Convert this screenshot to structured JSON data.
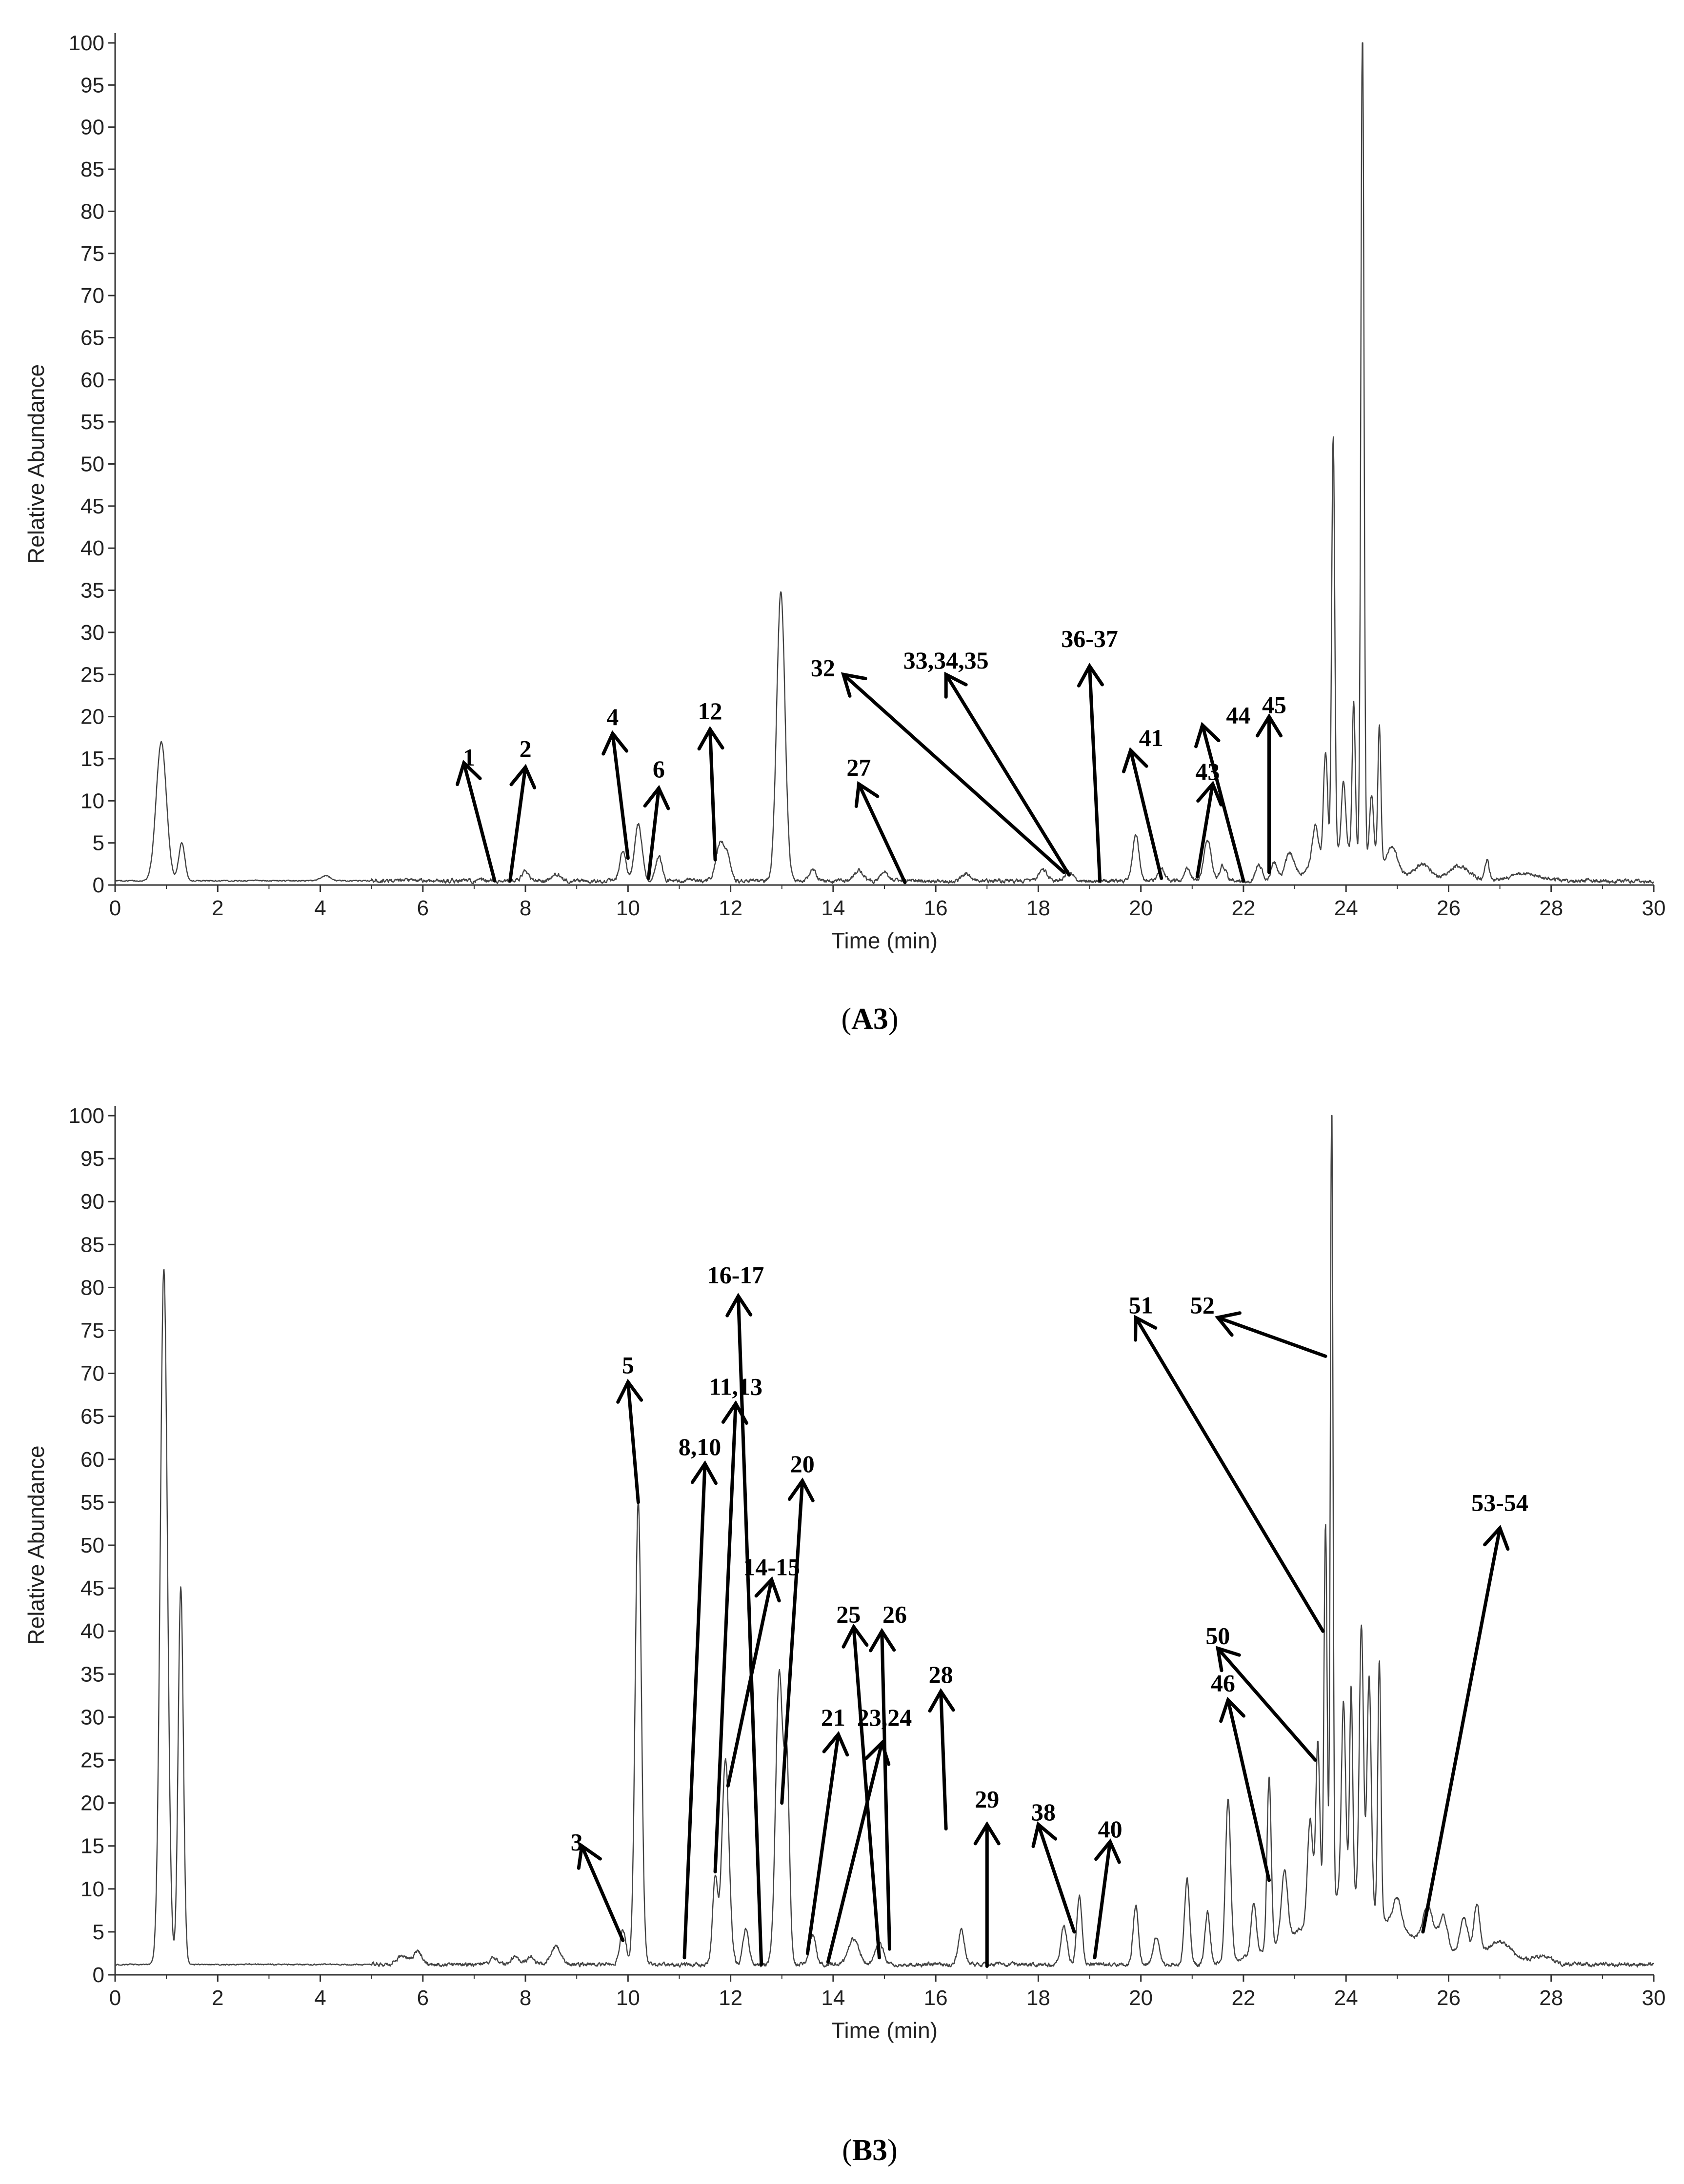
{
  "chart_data": [
    {
      "type": "line",
      "panel": "A3",
      "caption": {
        "open": "(",
        "bold": "A3",
        "close": ")"
      },
      "xlabel": "Time (min)",
      "ylabel": "Relative Abundance",
      "xlim": [
        0,
        30
      ],
      "ylim": [
        0,
        100
      ],
      "x_ticks": [
        0,
        2,
        4,
        6,
        8,
        10,
        12,
        14,
        16,
        18,
        20,
        22,
        24,
        26,
        28,
        30
      ],
      "x_tick_labels": [
        "0",
        "2",
        "4",
        "6",
        "8",
        "10",
        "12",
        "14",
        "16",
        "18",
        "20",
        "22",
        "24",
        "26",
        "28",
        "30"
      ],
      "y_ticks": [
        0,
        5,
        10,
        15,
        20,
        25,
        30,
        35,
        40,
        45,
        50,
        55,
        60,
        65,
        70,
        75,
        80,
        85,
        90,
        95,
        100
      ],
      "y_tick_labels": [
        "0",
        "5",
        "10",
        "15",
        "20",
        "25",
        "30",
        "35",
        "40",
        "45",
        "50",
        "55",
        "60",
        "65",
        "70",
        "75",
        "80",
        "85",
        "90",
        "95",
        "100"
      ],
      "baseline": 0.5,
      "peaks": [
        {
          "t": 0.9,
          "h": 16.5,
          "w": 0.1
        },
        {
          "t": 1.3,
          "h": 4.5,
          "w": 0.06
        },
        {
          "t": 4.1,
          "h": 0.6,
          "w": 0.1
        },
        {
          "t": 8.0,
          "h": 1.2,
          "w": 0.06
        },
        {
          "t": 8.6,
          "h": 0.8,
          "w": 0.08
        },
        {
          "t": 9.9,
          "h": 3.5,
          "w": 0.06
        },
        {
          "t": 10.2,
          "h": 6.8,
          "w": 0.07
        },
        {
          "t": 10.6,
          "h": 3.0,
          "w": 0.06
        },
        {
          "t": 11.8,
          "h": 4.5,
          "w": 0.08
        },
        {
          "t": 11.95,
          "h": 2.5,
          "w": 0.06
        },
        {
          "t": 12.98,
          "h": 34.5,
          "w": 0.08
        },
        {
          "t": 13.6,
          "h": 1.3,
          "w": 0.06
        },
        {
          "t": 14.5,
          "h": 1.2,
          "w": 0.08
        },
        {
          "t": 15.0,
          "h": 1.0,
          "w": 0.08
        },
        {
          "t": 16.6,
          "h": 0.9,
          "w": 0.08
        },
        {
          "t": 18.1,
          "h": 1.2,
          "w": 0.08
        },
        {
          "t": 18.6,
          "h": 1.0,
          "w": 0.08
        },
        {
          "t": 19.9,
          "h": 5.5,
          "w": 0.06
        },
        {
          "t": 20.4,
          "h": 1.5,
          "w": 0.06
        },
        {
          "t": 20.9,
          "h": 1.5,
          "w": 0.06
        },
        {
          "t": 21.3,
          "h": 4.8,
          "w": 0.07
        },
        {
          "t": 21.6,
          "h": 1.8,
          "w": 0.06
        },
        {
          "t": 22.3,
          "h": 2.0,
          "w": 0.06
        },
        {
          "t": 22.6,
          "h": 2.0,
          "w": 0.06
        },
        {
          "t": 22.9,
          "h": 2.8,
          "w": 0.08
        },
        {
          "t": 23.4,
          "h": 5.0,
          "w": 0.06
        },
        {
          "t": 23.6,
          "h": 13.0,
          "w": 0.04
        },
        {
          "t": 23.75,
          "h": 50.0,
          "w": 0.03
        },
        {
          "t": 23.95,
          "h": 8.0,
          "w": 0.04
        },
        {
          "t": 24.15,
          "h": 18.0,
          "w": 0.03
        },
        {
          "t": 24.32,
          "h": 99.5,
          "w": 0.03
        },
        {
          "t": 24.5,
          "h": 8.0,
          "w": 0.04
        },
        {
          "t": 24.65,
          "h": 16.5,
          "w": 0.03
        },
        {
          "t": 24.9,
          "h": 3.0,
          "w": 0.1
        },
        {
          "t": 25.5,
          "h": 1.8,
          "w": 0.15
        },
        {
          "t": 26.2,
          "h": 1.8,
          "w": 0.2
        },
        {
          "t": 26.75,
          "h": 2.5,
          "w": 0.04
        },
        {
          "t": 27.5,
          "h": 0.8,
          "w": 0.3
        }
      ],
      "hump": {
        "start": 22.2,
        "end": 26.0,
        "peak": 24.0,
        "height": 4.0
      },
      "annotations": [
        {
          "label": "1",
          "tail": [
            7.4,
            0.5
          ],
          "head": [
            6.8,
            14.5
          ],
          "text": [
            6.9,
            14.2
          ]
        },
        {
          "label": "2",
          "tail": [
            7.7,
            0.5
          ],
          "head": [
            8.0,
            14.0
          ],
          "text": [
            8.0,
            15.2
          ]
        },
        {
          "label": "4",
          "tail": [
            10.0,
            3.2
          ],
          "head": [
            9.7,
            18.0
          ],
          "text": [
            9.7,
            19.0
          ]
        },
        {
          "label": "6",
          "tail": [
            10.4,
            0.8
          ],
          "head": [
            10.6,
            11.5
          ],
          "text": [
            10.6,
            12.8
          ]
        },
        {
          "label": "12",
          "tail": [
            11.7,
            3.0
          ],
          "head": [
            11.6,
            18.5
          ],
          "text": [
            11.6,
            19.7
          ]
        },
        {
          "label": "27",
          "tail": [
            15.4,
            0.3
          ],
          "head": [
            14.5,
            12.0
          ],
          "text": [
            14.5,
            13.0
          ]
        },
        {
          "label": "32",
          "tail": [
            18.5,
            1.5
          ],
          "head": [
            14.2,
            25.0
          ],
          "text": [
            13.8,
            24.8
          ]
        },
        {
          "label": "33,34,35",
          "tail": [
            18.6,
            1.2
          ],
          "head": [
            16.2,
            25.0
          ],
          "text": [
            16.2,
            25.7
          ]
        },
        {
          "label": "36-37",
          "tail": [
            19.2,
            0.5
          ],
          "head": [
            19.0,
            26.0
          ],
          "text": [
            19.0,
            28.3
          ]
        },
        {
          "label": "41",
          "tail": [
            20.4,
            0.8
          ],
          "head": [
            19.8,
            16.0
          ],
          "text": [
            20.2,
            16.5
          ]
        },
        {
          "label": "43",
          "tail": [
            21.1,
            1.0
          ],
          "head": [
            21.4,
            12.0
          ],
          "text": [
            21.3,
            12.5
          ]
        },
        {
          "label": "44",
          "tail": [
            22.0,
            0.5
          ],
          "head": [
            21.2,
            19.0
          ],
          "text": [
            21.9,
            19.2
          ]
        },
        {
          "label": "45",
          "tail": [
            22.5,
            1.5
          ],
          "head": [
            22.5,
            20.0
          ],
          "text": [
            22.6,
            20.4
          ]
        }
      ]
    },
    {
      "type": "line",
      "panel": "B3",
      "caption": {
        "open": "(",
        "bold": "B3",
        "close": ")"
      },
      "xlabel": "Time (min)",
      "ylabel": "Relative Abundance",
      "xlim": [
        0,
        30
      ],
      "ylim": [
        0,
        100
      ],
      "x_ticks": [
        0,
        2,
        4,
        6,
        8,
        10,
        12,
        14,
        16,
        18,
        20,
        22,
        24,
        26,
        28,
        30
      ],
      "x_tick_labels": [
        "0",
        "2",
        "4",
        "6",
        "8",
        "10",
        "12",
        "14",
        "16",
        "18",
        "20",
        "22",
        "24",
        "26",
        "28",
        "30"
      ],
      "y_ticks": [
        0,
        5,
        10,
        15,
        20,
        25,
        30,
        35,
        40,
        45,
        50,
        55,
        60,
        65,
        70,
        75,
        80,
        85,
        90,
        95,
        100
      ],
      "y_tick_labels": [
        "0",
        "5",
        "10",
        "15",
        "20",
        "25",
        "30",
        "35",
        "40",
        "45",
        "50",
        "55",
        "60",
        "65",
        "70",
        "75",
        "80",
        "85",
        "90",
        "95",
        "100"
      ],
      "baseline": 1.2,
      "peaks": [
        {
          "t": 0.95,
          "h": 81.0,
          "w": 0.07
        },
        {
          "t": 1.28,
          "h": 44.0,
          "w": 0.05
        },
        {
          "t": 5.6,
          "h": 1.0,
          "w": 0.1
        },
        {
          "t": 5.9,
          "h": 1.5,
          "w": 0.08
        },
        {
          "t": 7.4,
          "h": 0.8,
          "w": 0.08
        },
        {
          "t": 7.8,
          "h": 1.0,
          "w": 0.08
        },
        {
          "t": 8.1,
          "h": 0.9,
          "w": 0.08
        },
        {
          "t": 8.6,
          "h": 2.0,
          "w": 0.1
        },
        {
          "t": 9.9,
          "h": 4.0,
          "w": 0.06
        },
        {
          "t": 10.2,
          "h": 54.0,
          "w": 0.06
        },
        {
          "t": 11.9,
          "h": 24.0,
          "w": 0.07
        },
        {
          "t": 11.7,
          "h": 10.0,
          "w": 0.05
        },
        {
          "t": 12.3,
          "h": 4.0,
          "w": 0.06
        },
        {
          "t": 12.95,
          "h": 34.0,
          "w": 0.07
        },
        {
          "t": 13.1,
          "h": 22.0,
          "w": 0.05
        },
        {
          "t": 13.6,
          "h": 3.5,
          "w": 0.06
        },
        {
          "t": 14.4,
          "h": 3.0,
          "w": 0.1
        },
        {
          "t": 14.9,
          "h": 2.5,
          "w": 0.08
        },
        {
          "t": 16.5,
          "h": 4.0,
          "w": 0.06
        },
        {
          "t": 18.5,
          "h": 4.5,
          "w": 0.06
        },
        {
          "t": 18.8,
          "h": 8.0,
          "w": 0.05
        },
        {
          "t": 19.9,
          "h": 7.0,
          "w": 0.05
        },
        {
          "t": 20.3,
          "h": 3.0,
          "w": 0.06
        },
        {
          "t": 20.9,
          "h": 10.0,
          "w": 0.05
        },
        {
          "t": 21.3,
          "h": 6.0,
          "w": 0.05
        },
        {
          "t": 21.7,
          "h": 19.0,
          "w": 0.05
        },
        {
          "t": 22.2,
          "h": 6.0,
          "w": 0.05
        },
        {
          "t": 22.5,
          "h": 20.0,
          "w": 0.04
        },
        {
          "t": 22.8,
          "h": 8.0,
          "w": 0.06
        },
        {
          "t": 23.3,
          "h": 12.0,
          "w": 0.05
        },
        {
          "t": 23.45,
          "h": 20.0,
          "w": 0.04
        },
        {
          "t": 23.6,
          "h": 45.0,
          "w": 0.03
        },
        {
          "t": 23.72,
          "h": 95.0,
          "w": 0.025
        },
        {
          "t": 23.95,
          "h": 22.0,
          "w": 0.04
        },
        {
          "t": 24.1,
          "h": 24.0,
          "w": 0.03
        },
        {
          "t": 24.3,
          "h": 32.0,
          "w": 0.04
        },
        {
          "t": 24.45,
          "h": 27.0,
          "w": 0.04
        },
        {
          "t": 24.65,
          "h": 30.0,
          "w": 0.03
        },
        {
          "t": 25.0,
          "h": 3.5,
          "w": 0.08
        },
        {
          "t": 25.6,
          "h": 4.5,
          "w": 0.1
        },
        {
          "t": 25.9,
          "h": 4.0,
          "w": 0.08
        },
        {
          "t": 26.3,
          "h": 4.5,
          "w": 0.08
        },
        {
          "t": 26.55,
          "h": 6.0,
          "w": 0.06
        },
        {
          "t": 27.0,
          "h": 2.5,
          "w": 0.25
        },
        {
          "t": 27.8,
          "h": 1.0,
          "w": 0.2
        }
      ],
      "hump": {
        "start": 21.0,
        "end": 27.5,
        "peak": 24.0,
        "height": 9.0
      },
      "annotations": [
        {
          "label": "3",
          "tail": [
            9.9,
            4.0
          ],
          "head": [
            9.1,
            15.0
          ],
          "text": [
            9.0,
            14.5
          ]
        },
        {
          "label": "5",
          "tail": [
            10.2,
            55.0
          ],
          "head": [
            10.0,
            69.0
          ],
          "text": [
            10.0,
            70.0
          ]
        },
        {
          "label": "8,10",
          "tail": [
            11.1,
            2.0
          ],
          "head": [
            11.5,
            59.5
          ],
          "text": [
            11.4,
            60.5
          ]
        },
        {
          "label": "11,13",
          "tail": [
            11.7,
            12.0
          ],
          "head": [
            12.1,
            66.5
          ],
          "text": [
            12.1,
            67.5
          ]
        },
        {
          "label": "16-17",
          "tail": [
            12.6,
            1.2
          ],
          "head": [
            12.15,
            79.0
          ],
          "text": [
            12.1,
            80.5
          ]
        },
        {
          "label": "14-15",
          "tail": [
            11.95,
            22.0
          ],
          "head": [
            12.8,
            46.0
          ],
          "text": [
            12.8,
            46.5
          ]
        },
        {
          "label": "20",
          "tail": [
            13.0,
            20.0
          ],
          "head": [
            13.4,
            57.5
          ],
          "text": [
            13.4,
            58.5
          ]
        },
        {
          "label": "21",
          "tail": [
            13.5,
            2.5
          ],
          "head": [
            14.1,
            28.0
          ],
          "text": [
            14.0,
            29.0
          ]
        },
        {
          "label": "23,24",
          "tail": [
            13.9,
            1.5
          ],
          "head": [
            14.95,
            27.0
          ],
          "text": [
            15.0,
            29.0
          ]
        },
        {
          "label": "25",
          "tail": [
            14.9,
            2.0
          ],
          "head": [
            14.4,
            40.5
          ],
          "text": [
            14.3,
            41.0
          ]
        },
        {
          "label": "26",
          "tail": [
            15.1,
            3.0
          ],
          "head": [
            14.95,
            40.0
          ],
          "text": [
            15.2,
            41.0
          ]
        },
        {
          "label": "28",
          "tail": [
            16.2,
            17.0
          ],
          "head": [
            16.1,
            33.0
          ],
          "text": [
            16.1,
            34.0
          ]
        },
        {
          "label": "29",
          "tail": [
            17.0,
            1.0
          ],
          "head": [
            17.0,
            17.5
          ],
          "text": [
            17.0,
            19.5
          ]
        },
        {
          "label": "38",
          "tail": [
            18.7,
            5.0
          ],
          "head": [
            18.0,
            17.5
          ],
          "text": [
            18.1,
            18.0
          ]
        },
        {
          "label": "40",
          "tail": [
            19.1,
            2.0
          ],
          "head": [
            19.4,
            15.5
          ],
          "text": [
            19.4,
            16.0
          ]
        },
        {
          "label": "46",
          "tail": [
            22.5,
            11.0
          ],
          "head": [
            21.7,
            32.0
          ],
          "text": [
            21.6,
            33.0
          ]
        },
        {
          "label": "50",
          "tail": [
            23.4,
            25.0
          ],
          "head": [
            21.5,
            38.0
          ],
          "text": [
            21.5,
            38.5
          ]
        },
        {
          "label": "51",
          "tail": [
            23.55,
            40.0
          ],
          "head": [
            19.9,
            76.5
          ],
          "text": [
            20.0,
            77.0
          ]
        },
        {
          "label": "52",
          "tail": [
            23.6,
            72.0
          ],
          "head": [
            21.5,
            76.5
          ],
          "text": [
            21.2,
            77.0
          ]
        },
        {
          "label": "53-54",
          "tail": [
            25.5,
            5.0
          ],
          "head": [
            27.0,
            52.0
          ],
          "text": [
            27.0,
            54.0
          ]
        }
      ]
    }
  ]
}
